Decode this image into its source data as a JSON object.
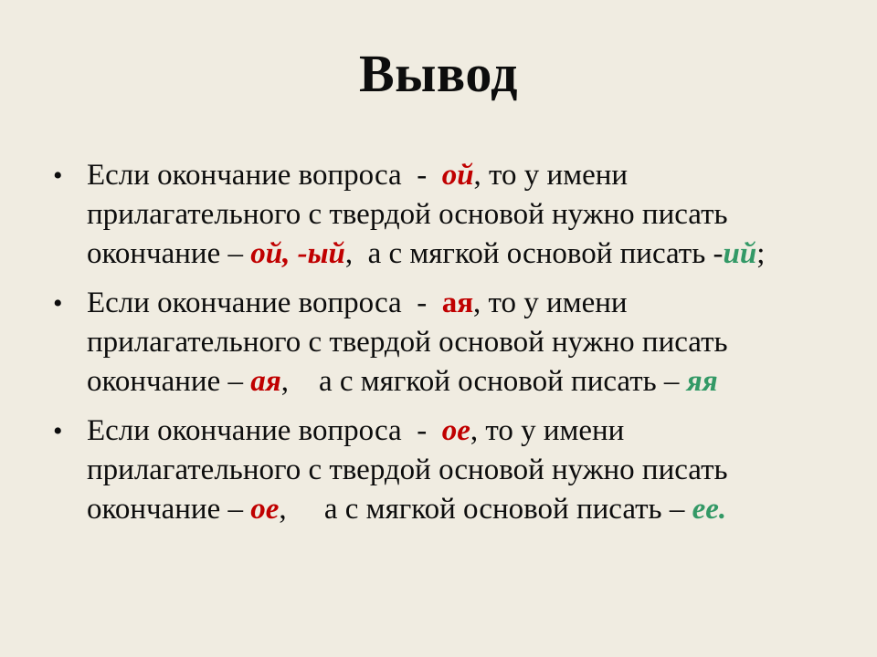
{
  "page": {
    "title": "Вывод"
  },
  "colors": {
    "background": "#F0ECE1",
    "text": "#0D0D0D",
    "red": "#C00000",
    "green": "#339966"
  },
  "bullet_glyph": "•",
  "bullets": [
    {
      "lines": [
        [
          {
            "t": "Если окончание вопроса  -  ",
            "s": "n"
          },
          {
            "t": "ой",
            "s": "ri"
          },
          {
            "t": ", то у имени",
            "s": "n"
          }
        ],
        [
          {
            "t": "прилагательного с твердой основой нужно писать",
            "s": "n"
          }
        ],
        [
          {
            "t": "окончание – ",
            "s": "n"
          },
          {
            "t": "ой, -ый",
            "s": "ri"
          },
          {
            "t": ",  а с мягкой основой писать -",
            "s": "n"
          },
          {
            "t": "ий",
            "s": "gi"
          },
          {
            "t": ";",
            "s": "n"
          }
        ]
      ]
    },
    {
      "lines": [
        [
          {
            "t": "Если окончание вопроса  -  ",
            "s": "n"
          },
          {
            "t": "ая",
            "s": "r"
          },
          {
            "t": ", то у имени",
            "s": "n"
          }
        ],
        [
          {
            "t": "прилагательного с твердой основой нужно писать",
            "s": "n"
          }
        ],
        [
          {
            "t": "окончание – ",
            "s": "n"
          },
          {
            "t": "ая",
            "s": "ri"
          },
          {
            "t": ",    а с мягкой основой писать – ",
            "s": "n"
          },
          {
            "t": "яя",
            "s": "gi"
          }
        ]
      ]
    },
    {
      "lines": [
        [
          {
            "t": "Если окончание вопроса  -  ",
            "s": "n"
          },
          {
            "t": "ое",
            "s": "ri"
          },
          {
            "t": ", то у имени",
            "s": "n"
          }
        ],
        [
          {
            "t": "прилагательного с твердой основой нужно писать",
            "s": "n"
          }
        ],
        [
          {
            "t": "окончание – ",
            "s": "n"
          },
          {
            "t": "ое",
            "s": "ri"
          },
          {
            "t": ",     а с мягкой основой писать – ",
            "s": "n"
          },
          {
            "t": "ее.",
            "s": "gi"
          }
        ]
      ]
    }
  ]
}
